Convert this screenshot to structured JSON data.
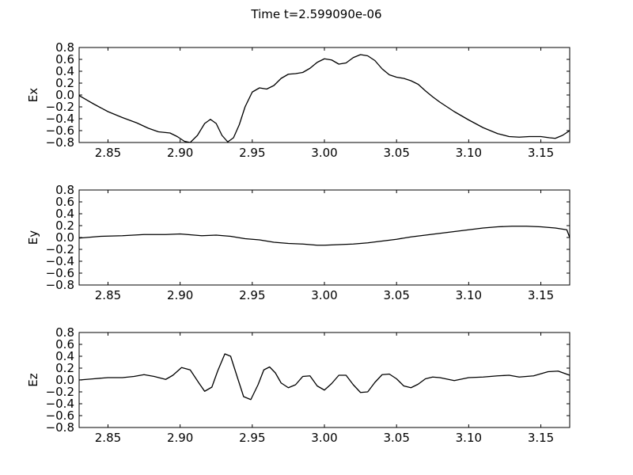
{
  "figure": {
    "suptitle": "Time t=2.599090e-06"
  },
  "chart_data": [
    {
      "type": "line",
      "title": "",
      "xlabel": "",
      "ylabel": "Ex",
      "xlim": [
        2.83,
        3.17
      ],
      "ylim": [
        -0.8,
        0.8
      ],
      "xticks": [
        "2.85",
        "2.90",
        "2.95",
        "3.00",
        "3.05",
        "3.10",
        "3.15"
      ],
      "yticks": [
        "0.8",
        "0.6",
        "0.4",
        "0.2",
        "0.0",
        "−0.2",
        "−0.4",
        "−0.6",
        "−0.8"
      ],
      "grid": false,
      "series": [
        {
          "x": [
            2.83,
            2.84,
            2.85,
            2.86,
            2.87,
            2.878,
            2.885,
            2.893,
            2.898,
            2.903,
            2.907,
            2.912,
            2.917,
            2.921,
            2.925,
            2.929,
            2.933,
            2.937,
            2.941,
            2.945,
            2.95,
            2.955,
            2.96,
            2.965,
            2.97,
            2.975,
            2.98,
            2.985,
            2.99,
            2.995,
            3.0,
            3.005,
            3.01,
            3.015,
            3.02,
            3.025,
            3.03,
            3.035,
            3.04,
            3.045,
            3.05,
            3.055,
            3.06,
            3.065,
            3.07,
            3.075,
            3.08,
            3.09,
            3.1,
            3.11,
            3.12,
            3.128,
            3.135,
            3.142,
            3.15,
            3.156,
            3.16,
            3.165,
            3.17
          ],
          "y": [
            -0.01,
            -0.15,
            -0.28,
            -0.38,
            -0.47,
            -0.56,
            -0.62,
            -0.64,
            -0.7,
            -0.78,
            -0.8,
            -0.68,
            -0.48,
            -0.41,
            -0.48,
            -0.68,
            -0.79,
            -0.72,
            -0.5,
            -0.2,
            0.05,
            0.12,
            0.1,
            0.16,
            0.28,
            0.35,
            0.36,
            0.38,
            0.45,
            0.55,
            0.61,
            0.59,
            0.52,
            0.54,
            0.63,
            0.68,
            0.66,
            0.58,
            0.44,
            0.34,
            0.3,
            0.28,
            0.24,
            0.18,
            0.07,
            -0.03,
            -0.12,
            -0.28,
            -0.42,
            -0.55,
            -0.65,
            -0.7,
            -0.71,
            -0.7,
            -0.7,
            -0.72,
            -0.73,
            -0.68,
            -0.6
          ]
        }
      ]
    },
    {
      "type": "line",
      "title": "",
      "xlabel": "",
      "ylabel": "Ey",
      "xlim": [
        2.83,
        3.17
      ],
      "ylim": [
        -0.8,
        0.8
      ],
      "xticks": [
        "2.85",
        "2.90",
        "2.95",
        "3.00",
        "3.05",
        "3.10",
        "3.15"
      ],
      "yticks": [
        "0.8",
        "0.6",
        "0.4",
        "0.2",
        "0.0",
        "−0.2",
        "−0.4",
        "−0.6",
        "−0.8"
      ],
      "grid": false,
      "series": [
        {
          "x": [
            2.83,
            2.845,
            2.86,
            2.875,
            2.89,
            2.9,
            2.91,
            2.915,
            2.925,
            2.935,
            2.945,
            2.955,
            2.965,
            2.975,
            2.985,
            2.995,
            3.0,
            3.01,
            3.02,
            3.03,
            3.04,
            3.05,
            3.06,
            3.07,
            3.08,
            3.09,
            3.1,
            3.11,
            3.12,
            3.13,
            3.14,
            3.15,
            3.16,
            3.168,
            3.17
          ],
          "y": [
            -0.01,
            0.02,
            0.03,
            0.05,
            0.05,
            0.06,
            0.04,
            0.03,
            0.04,
            0.02,
            -0.02,
            -0.04,
            -0.08,
            -0.1,
            -0.11,
            -0.13,
            -0.13,
            -0.12,
            -0.11,
            -0.09,
            -0.06,
            -0.03,
            0.01,
            0.04,
            0.07,
            0.1,
            0.13,
            0.16,
            0.18,
            0.19,
            0.19,
            0.18,
            0.16,
            0.13,
            0.0
          ]
        }
      ]
    },
    {
      "type": "line",
      "title": "",
      "xlabel": "",
      "ylabel": "Ez",
      "xlim": [
        2.83,
        3.17
      ],
      "ylim": [
        -0.8,
        0.8
      ],
      "xticks": [
        "2.85",
        "2.90",
        "2.95",
        "3.00",
        "3.05",
        "3.10",
        "3.15"
      ],
      "yticks": [
        "0.8",
        "0.6",
        "0.4",
        "0.2",
        "0.0",
        "−0.2",
        "−0.4",
        "−0.6",
        "−0.8"
      ],
      "grid": false,
      "series": [
        {
          "x": [
            2.83,
            2.84,
            2.85,
            2.86,
            2.868,
            2.875,
            2.882,
            2.89,
            2.895,
            2.901,
            2.907,
            2.913,
            2.917,
            2.922,
            2.926,
            2.931,
            2.935,
            2.94,
            2.944,
            2.949,
            2.954,
            2.958,
            2.962,
            2.966,
            2.97,
            2.975,
            2.98,
            2.985,
            2.99,
            2.995,
            3.0,
            3.005,
            3.01,
            3.015,
            3.02,
            3.025,
            3.03,
            3.035,
            3.04,
            3.045,
            3.05,
            3.055,
            3.06,
            3.065,
            3.07,
            3.075,
            3.08,
            3.09,
            3.1,
            3.11,
            3.12,
            3.128,
            3.135,
            3.145,
            3.155,
            3.162,
            3.17
          ],
          "y": [
            0.0,
            0.02,
            0.04,
            0.04,
            0.06,
            0.09,
            0.06,
            0.01,
            0.08,
            0.21,
            0.17,
            -0.05,
            -0.19,
            -0.12,
            0.15,
            0.44,
            0.4,
            0.02,
            -0.28,
            -0.33,
            -0.08,
            0.17,
            0.22,
            0.12,
            -0.05,
            -0.13,
            -0.08,
            0.06,
            0.07,
            -0.1,
            -0.17,
            -0.06,
            0.08,
            0.08,
            -0.08,
            -0.21,
            -0.2,
            -0.04,
            0.09,
            0.1,
            0.02,
            -0.1,
            -0.13,
            -0.07,
            0.02,
            0.05,
            0.04,
            -0.01,
            0.04,
            0.05,
            0.07,
            0.08,
            0.05,
            0.07,
            0.14,
            0.15,
            0.08
          ]
        }
      ]
    }
  ]
}
